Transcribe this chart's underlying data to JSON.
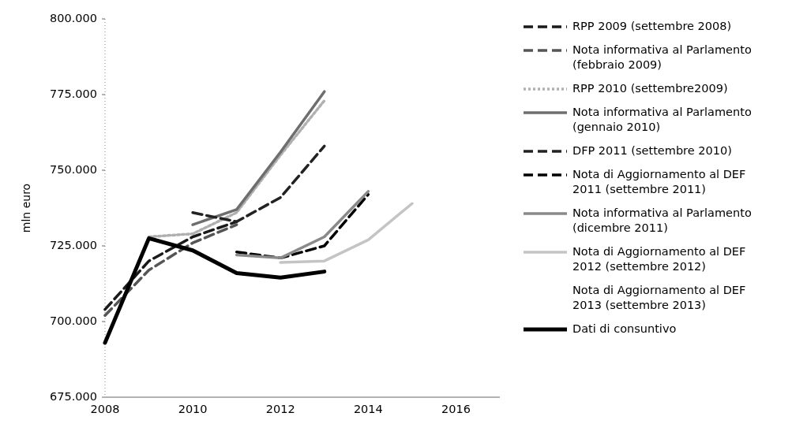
{
  "chart_data": {
    "type": "line",
    "ylabel": "mln euro",
    "x": [
      2008,
      2009,
      2010,
      2011,
      2012,
      2013,
      2014,
      2015
    ],
    "xlim": [
      2008,
      2017
    ],
    "xticks": [
      2008,
      2010,
      2012,
      2014,
      2016
    ],
    "ylim": [
      675000,
      800000
    ],
    "yticks": [
      {
        "value": 675000,
        "label": "675.000"
      },
      {
        "value": 700000,
        "label": "700.000"
      },
      {
        "value": 725000,
        "label": "725.000"
      },
      {
        "value": 750000,
        "label": "750.000"
      },
      {
        "value": 775000,
        "label": "775.000"
      },
      {
        "value": 800000,
        "label": "800.000"
      }
    ],
    "grid": false,
    "legend": "right",
    "marker": "none",
    "series": [
      {
        "name": "RPP 2009 (settembre 2008)",
        "color": "#1a1a1a",
        "line_style": "dashed",
        "values": [
          704000,
          720000,
          728000,
          733000,
          null,
          null,
          null,
          null
        ]
      },
      {
        "name": "Nota informativa al Parlamento (febbraio 2009)",
        "color": "#555555",
        "line_style": "dashed",
        "values": [
          702000,
          717000,
          726000,
          732000,
          null,
          null,
          null,
          null
        ]
      },
      {
        "name": "RPP 2010 (settembre2009)",
        "color": "#b0b0b0",
        "line_style": "dotted",
        "values": [
          null,
          728000,
          729000,
          736000,
          755000,
          773000,
          null,
          null
        ]
      },
      {
        "name": "Nota informativa al Parlamento (gennaio 2010)",
        "color": "#6e6e6e",
        "line_style": "solid",
        "values": [
          null,
          null,
          732000,
          737000,
          756000,
          776000,
          null,
          null
        ]
      },
      {
        "name": "DFP 2011 (settembre 2010)",
        "color": "#222222",
        "line_style": "dashed",
        "values": [
          null,
          null,
          736000,
          733000,
          741000,
          758000,
          null,
          null
        ]
      },
      {
        "name": "Nota di Aggiornamento al DEF 2011 (settembre 2011)",
        "color": "#000000",
        "line_style": "dashed",
        "values": [
          null,
          null,
          null,
          723000,
          721000,
          725000,
          742000,
          null
        ]
      },
      {
        "name": "Nota informativa al Parlamento (dicembre 2011)",
        "color": "#8a8a8a",
        "line_style": "solid",
        "values": [
          null,
          null,
          null,
          722000,
          721000,
          728000,
          743000,
          null
        ]
      },
      {
        "name": "Nota di Aggiornamento al DEF 2012 (settembre 2012)",
        "color": "#c4c4c4",
        "line_style": "solid",
        "values": [
          null,
          null,
          null,
          null,
          719500,
          720000,
          727000,
          739000
        ]
      },
      {
        "name": "Nota di Aggiornamento al DEF 2013 (settembre 2013)",
        "values": [
          null,
          null,
          null,
          null,
          null,
          null,
          null,
          null
        ]
      },
      {
        "name": "Dati di consuntivo",
        "color": "#000000",
        "line_style": "solid",
        "values": [
          693000,
          727500,
          723500,
          716000,
          714500,
          716500,
          null,
          null
        ]
      }
    ]
  }
}
